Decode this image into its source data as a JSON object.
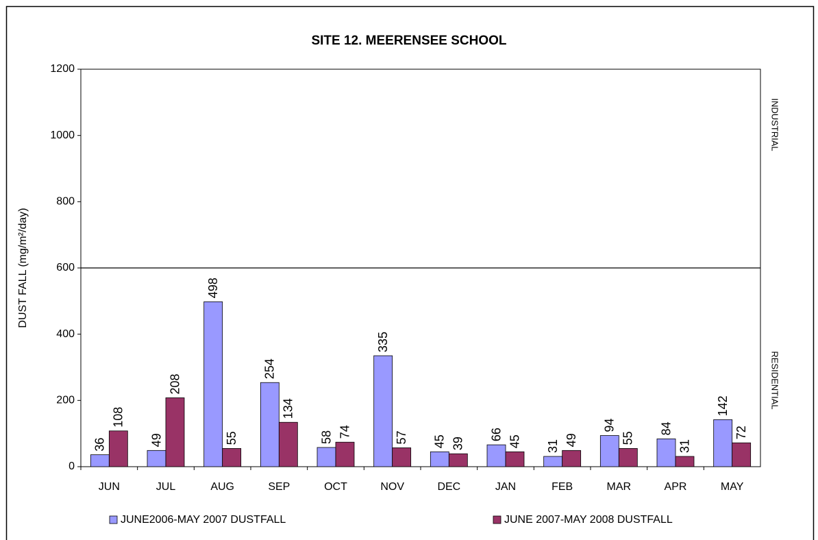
{
  "chart_data": {
    "type": "bar",
    "title": "SITE 12.  MEERENSEE SCHOOL",
    "y_label": "DUST FALL  (mg/m²/day)",
    "annotations": [
      "INDUSTRIAL",
      "RESIDENTIAL"
    ],
    "reference_line": 600,
    "categories": [
      "JUN",
      "JUL",
      "AUG",
      "SEP",
      "OCT",
      "NOV",
      "DEC",
      "JAN",
      "FEB",
      "MAR",
      "APR",
      "MAY"
    ],
    "series": [
      {
        "name": "JUNE2006-MAY 2007 DUSTFALL",
        "color": "#9999ff",
        "values": [
          36,
          49,
          498,
          254,
          58,
          335,
          45,
          66,
          31,
          94,
          84,
          142
        ]
      },
      {
        "name": "JUNE 2007-MAY 2008 DUSTFALL",
        "color": "#993366",
        "values": [
          108,
          208,
          55,
          134,
          74,
          57,
          39,
          45,
          49,
          55,
          31,
          72
        ]
      }
    ],
    "ylim": [
      0,
      1200
    ],
    "yticks": [
      0,
      200,
      400,
      600,
      800,
      1000,
      1200
    ],
    "grid": false,
    "legend": "bottom"
  }
}
